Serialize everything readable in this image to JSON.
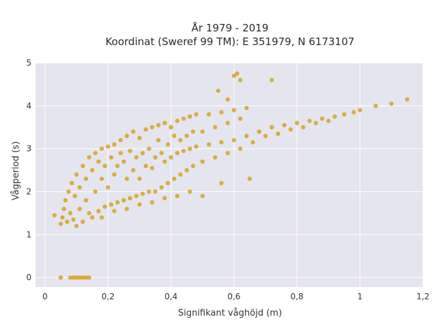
{
  "chart_data": {
    "type": "scatter",
    "title_line1": "År 1979 - 2019",
    "title_line2": "Koordinat (Sweref 99 TM): E 351979, N 6173107",
    "xlabel": "Signifikant våghöjd (m)",
    "ylabel": "Vågperiod (s)",
    "xlim": [
      -0.03,
      1.2
    ],
    "ylim": [
      -0.22,
      5
    ],
    "x_ticks": [
      0,
      0.2,
      0.4,
      0.6,
      0.8,
      1,
      1.2
    ],
    "x_tick_labels": [
      "0",
      "0,2",
      "0,4",
      "0,6",
      "0,8",
      "1",
      "1,2"
    ],
    "y_ticks": [
      0,
      1,
      2,
      3,
      4,
      5
    ],
    "y_tick_labels": [
      "0",
      "1",
      "2",
      "3",
      "4",
      "5"
    ],
    "grid": true,
    "background_color": "#e5e5ef",
    "marker_color": "#d4a017",
    "legend": "none",
    "series": [
      {
        "points": [
          [
            0.05,
            1.25
          ],
          [
            0.055,
            1.4
          ],
          [
            0.06,
            1.6
          ],
          [
            0.065,
            1.8
          ],
          [
            0.07,
            1.3
          ],
          [
            0.075,
            2.0
          ],
          [
            0.08,
            1.5
          ],
          [
            0.085,
            2.2
          ],
          [
            0.09,
            1.35
          ],
          [
            0.095,
            1.9
          ],
          [
            0.1,
            1.2
          ],
          [
            0.1,
            2.4
          ],
          [
            0.11,
            1.6
          ],
          [
            0.11,
            2.1
          ],
          [
            0.12,
            1.3
          ],
          [
            0.12,
            2.6
          ],
          [
            0.13,
            1.8
          ],
          [
            0.13,
            2.3
          ],
          [
            0.14,
            1.5
          ],
          [
            0.14,
            2.8
          ],
          [
            0.15,
            1.4
          ],
          [
            0.15,
            2.5
          ],
          [
            0.16,
            2.0
          ],
          [
            0.16,
            2.9
          ],
          [
            0.17,
            1.55
          ],
          [
            0.17,
            2.7
          ],
          [
            0.18,
            2.3
          ],
          [
            0.18,
            3.0
          ],
          [
            0.19,
            1.65
          ],
          [
            0.19,
            2.6
          ],
          [
            0.2,
            2.1
          ],
          [
            0.2,
            3.05
          ],
          [
            0.21,
            1.7
          ],
          [
            0.21,
            2.8
          ],
          [
            0.22,
            2.4
          ],
          [
            0.22,
            3.1
          ],
          [
            0.23,
            1.75
          ],
          [
            0.23,
            2.6
          ],
          [
            0.24,
            2.9
          ],
          [
            0.24,
            3.2
          ],
          [
            0.25,
            1.8
          ],
          [
            0.25,
            2.7
          ],
          [
            0.26,
            2.3
          ],
          [
            0.26,
            3.3
          ],
          [
            0.27,
            1.85
          ],
          [
            0.27,
            2.95
          ],
          [
            0.28,
            2.5
          ],
          [
            0.28,
            3.4
          ],
          [
            0.29,
            1.9
          ],
          [
            0.29,
            2.8
          ],
          [
            0.3,
            2.3
          ],
          [
            0.3,
            3.25
          ],
          [
            0.31,
            1.95
          ],
          [
            0.31,
            2.9
          ],
          [
            0.32,
            2.6
          ],
          [
            0.32,
            3.45
          ],
          [
            0.33,
            2.0
          ],
          [
            0.33,
            3.0
          ],
          [
            0.34,
            2.55
          ],
          [
            0.34,
            3.5
          ],
          [
            0.35,
            2.0
          ],
          [
            0.35,
            2.8
          ],
          [
            0.36,
            3.2
          ],
          [
            0.36,
            3.55
          ],
          [
            0.37,
            2.1
          ],
          [
            0.37,
            2.9
          ],
          [
            0.38,
            2.7
          ],
          [
            0.38,
            3.6
          ],
          [
            0.39,
            2.2
          ],
          [
            0.39,
            3.1
          ],
          [
            0.4,
            2.8
          ],
          [
            0.4,
            3.5
          ],
          [
            0.41,
            2.3
          ],
          [
            0.41,
            3.3
          ],
          [
            0.42,
            2.9
          ],
          [
            0.42,
            3.65
          ],
          [
            0.43,
            2.4
          ],
          [
            0.43,
            3.2
          ],
          [
            0.44,
            2.95
          ],
          [
            0.44,
            3.7
          ],
          [
            0.45,
            2.5
          ],
          [
            0.45,
            3.3
          ],
          [
            0.46,
            3.0
          ],
          [
            0.46,
            3.75
          ],
          [
            0.47,
            2.6
          ],
          [
            0.47,
            3.4
          ],
          [
            0.48,
            3.05
          ],
          [
            0.48,
            3.8
          ],
          [
            0.5,
            2.7
          ],
          [
            0.5,
            3.4
          ],
          [
            0.52,
            3.1
          ],
          [
            0.52,
            3.8
          ],
          [
            0.54,
            2.8
          ],
          [
            0.54,
            3.5
          ],
          [
            0.56,
            3.15
          ],
          [
            0.56,
            3.85
          ],
          [
            0.58,
            2.9
          ],
          [
            0.58,
            3.6
          ],
          [
            0.6,
            3.2
          ],
          [
            0.6,
            3.9
          ],
          [
            0.62,
            3.0
          ],
          [
            0.62,
            3.7
          ],
          [
            0.64,
            3.3
          ],
          [
            0.64,
            3.95
          ],
          [
            0.66,
            3.15
          ],
          [
            0.68,
            3.4
          ],
          [
            0.7,
            3.3
          ],
          [
            0.72,
            3.5
          ],
          [
            0.74,
            3.35
          ],
          [
            0.76,
            3.55
          ],
          [
            0.78,
            3.45
          ],
          [
            0.8,
            3.6
          ],
          [
            0.82,
            3.5
          ],
          [
            0.84,
            3.65
          ],
          [
            0.86,
            3.6
          ],
          [
            0.88,
            3.7
          ],
          [
            0.9,
            3.65
          ],
          [
            0.92,
            3.75
          ],
          [
            0.95,
            3.8
          ],
          [
            0.98,
            3.85
          ],
          [
            1.0,
            3.9
          ],
          [
            1.05,
            4.0
          ],
          [
            1.1,
            4.05
          ],
          [
            1.15,
            4.15
          ],
          [
            0.18,
            1.4
          ],
          [
            0.22,
            1.55
          ],
          [
            0.26,
            1.6
          ],
          [
            0.3,
            1.7
          ],
          [
            0.34,
            1.75
          ],
          [
            0.38,
            1.85
          ],
          [
            0.42,
            1.9
          ],
          [
            0.46,
            2.0
          ],
          [
            0.5,
            1.9
          ],
          [
            0.08,
            0
          ],
          [
            0.09,
            0
          ],
          [
            0.1,
            0
          ],
          [
            0.11,
            0
          ],
          [
            0.12,
            0
          ],
          [
            0.13,
            0
          ],
          [
            0.14,
            0
          ],
          [
            0.03,
            1.45
          ],
          [
            0.05,
            0.0
          ],
          [
            0.6,
            4.7
          ],
          [
            0.61,
            4.75
          ],
          [
            0.62,
            4.6
          ],
          [
            0.55,
            4.35
          ],
          [
            0.58,
            4.15
          ],
          [
            0.56,
            2.2
          ],
          [
            0.65,
            2.3
          ],
          [
            0.72,
            4.6
          ]
        ]
      }
    ]
  }
}
